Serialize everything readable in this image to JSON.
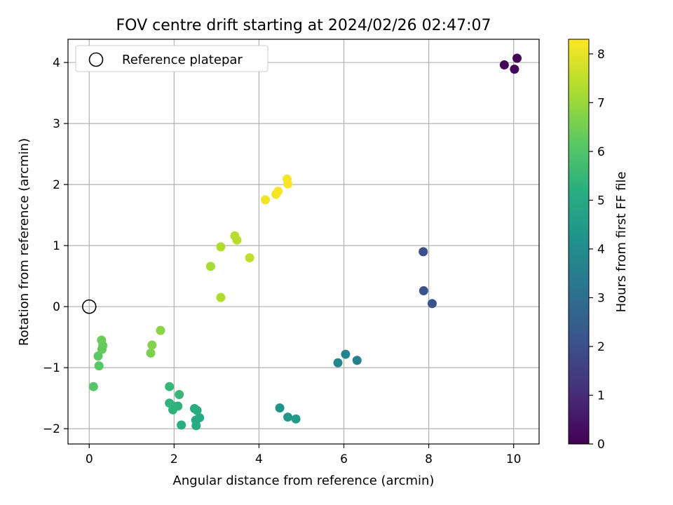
{
  "chart_data": {
    "type": "scatter",
    "title": "FOV centre drift starting at 2024/02/26 02:47:07",
    "xlabel": "Angular distance from reference (arcmin)",
    "ylabel": "Rotation from reference (arcmin)",
    "xlim": [
      -0.5,
      10.6
    ],
    "ylim": [
      -2.25,
      4.38
    ],
    "xticks": [
      0,
      2,
      4,
      6,
      8,
      10
    ],
    "yticks": [
      -2,
      -1,
      0,
      1,
      2,
      3,
      4
    ],
    "grid": true,
    "legend": {
      "position": "top-left",
      "entries": [
        "Reference platepar"
      ]
    },
    "reference": {
      "x": 0,
      "y": 0
    },
    "colorbar": {
      "label": "Hours from first FF file",
      "colormap": "viridis",
      "range": [
        0,
        8.3
      ],
      "ticks": [
        0,
        1,
        2,
        3,
        4,
        5,
        6,
        7,
        8
      ]
    },
    "points": [
      {
        "x": 9.78,
        "y": 3.96,
        "c": 0.05
      },
      {
        "x": 10.08,
        "y": 4.07,
        "c": 0.1
      },
      {
        "x": 10.02,
        "y": 3.89,
        "c": 0.15
      },
      {
        "x": 7.87,
        "y": 0.9,
        "c": 2.0
      },
      {
        "x": 7.88,
        "y": 0.26,
        "c": 2.1
      },
      {
        "x": 8.08,
        "y": 0.05,
        "c": 2.2
      },
      {
        "x": 6.31,
        "y": -0.88,
        "c": 3.6
      },
      {
        "x": 6.04,
        "y": -0.78,
        "c": 3.7
      },
      {
        "x": 5.86,
        "y": -0.92,
        "c": 3.8
      },
      {
        "x": 4.49,
        "y": -1.66,
        "c": 4.3
      },
      {
        "x": 4.68,
        "y": -1.81,
        "c": 4.4
      },
      {
        "x": 4.87,
        "y": -1.84,
        "c": 4.5
      },
      {
        "x": 2.6,
        "y": -1.82,
        "c": 5.0
      },
      {
        "x": 2.51,
        "y": -1.86,
        "c": 5.05
      },
      {
        "x": 2.52,
        "y": -1.95,
        "c": 5.1
      },
      {
        "x": 2.48,
        "y": -1.67,
        "c": 5.1
      },
      {
        "x": 2.54,
        "y": -1.7,
        "c": 5.15
      },
      {
        "x": 2.17,
        "y": -1.94,
        "c": 5.2
      },
      {
        "x": 2.09,
        "y": -1.63,
        "c": 5.3
      },
      {
        "x": 1.97,
        "y": -1.69,
        "c": 5.3
      },
      {
        "x": 1.98,
        "y": -1.63,
        "c": 5.35
      },
      {
        "x": 1.89,
        "y": -1.58,
        "c": 5.4
      },
      {
        "x": 2.12,
        "y": -1.44,
        "c": 5.5
      },
      {
        "x": 1.89,
        "y": -1.31,
        "c": 5.5
      },
      {
        "x": 0.1,
        "y": -1.31,
        "c": 6.1
      },
      {
        "x": 0.23,
        "y": -0.97,
        "c": 6.1
      },
      {
        "x": 0.21,
        "y": -0.81,
        "c": 6.2
      },
      {
        "x": 0.32,
        "y": -0.64,
        "c": 6.3
      },
      {
        "x": 0.3,
        "y": -0.7,
        "c": 6.3
      },
      {
        "x": 0.29,
        "y": -0.55,
        "c": 6.4
      },
      {
        "x": 1.45,
        "y": -0.76,
        "c": 6.6
      },
      {
        "x": 1.48,
        "y": -0.63,
        "c": 6.7
      },
      {
        "x": 1.68,
        "y": -0.39,
        "c": 6.8
      },
      {
        "x": 2.86,
        "y": 0.66,
        "c": 7.2
      },
      {
        "x": 3.1,
        "y": 0.15,
        "c": 7.3
      },
      {
        "x": 3.1,
        "y": 0.98,
        "c": 7.3
      },
      {
        "x": 3.43,
        "y": 1.16,
        "c": 7.4
      },
      {
        "x": 3.48,
        "y": 1.09,
        "c": 7.4
      },
      {
        "x": 3.78,
        "y": 0.8,
        "c": 7.5
      },
      {
        "x": 4.15,
        "y": 1.75,
        "c": 8.1
      },
      {
        "x": 4.4,
        "y": 1.84,
        "c": 8.15
      },
      {
        "x": 4.45,
        "y": 1.89,
        "c": 8.2
      },
      {
        "x": 4.66,
        "y": 2.09,
        "c": 8.2
      },
      {
        "x": 4.68,
        "y": 2.01,
        "c": 8.25
      }
    ]
  }
}
